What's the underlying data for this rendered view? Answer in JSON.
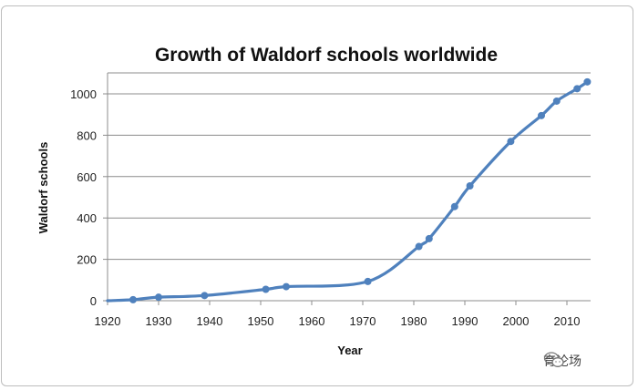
{
  "chart_data": {
    "type": "line",
    "title": "Growth of Waldorf schools worldwide",
    "xlabel": "Year",
    "ylabel": "Waldorf schools",
    "xlim": [
      1920,
      2015
    ],
    "ylim": [
      0,
      1100
    ],
    "x_ticks": [
      1920,
      1930,
      1940,
      1950,
      1960,
      1970,
      1980,
      1990,
      2000,
      2010
    ],
    "y_ticks": [
      0,
      200,
      400,
      600,
      800,
      1000
    ],
    "grid": "horizontal",
    "legend": "none",
    "series": [
      {
        "color": "#4f81bd",
        "smooth": true,
        "points": [
          {
            "x": 1925,
            "y": 5
          },
          {
            "x": 1930,
            "y": 17
          },
          {
            "x": 1939,
            "y": 25
          },
          {
            "x": 1951,
            "y": 55
          },
          {
            "x": 1955,
            "y": 68
          },
          {
            "x": 1971,
            "y": 93
          },
          {
            "x": 1981,
            "y": 262
          },
          {
            "x": 1983,
            "y": 300
          },
          {
            "x": 1988,
            "y": 455
          },
          {
            "x": 1991,
            "y": 555
          },
          {
            "x": 1999,
            "y": 770
          },
          {
            "x": 2005,
            "y": 895
          },
          {
            "x": 2008,
            "y": 965
          },
          {
            "x": 2012,
            "y": 1025
          },
          {
            "x": 2014,
            "y": 1058
          }
        ]
      }
    ]
  },
  "watermark": {
    "text": "育论场",
    "icon": "wechat-icon"
  }
}
